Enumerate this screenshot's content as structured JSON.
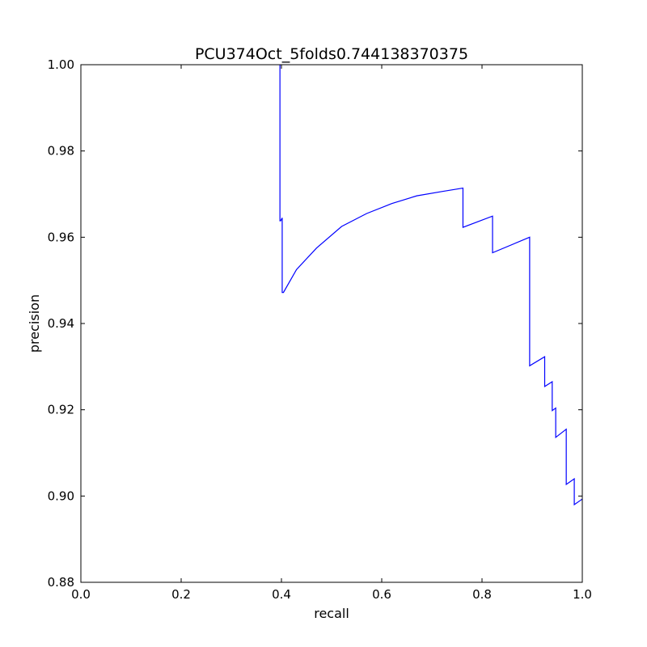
{
  "chart_data": {
    "type": "line",
    "title": "PCU374Oct_5folds0.744138370375",
    "xlabel": "recall",
    "ylabel": "precision",
    "xlim": [
      0.0,
      1.0
    ],
    "ylim": [
      0.88,
      1.0
    ],
    "x_ticks": [
      "0.0",
      "0.2",
      "0.4",
      "0.6",
      "0.8",
      "1.0"
    ],
    "y_ticks": [
      "0.88",
      "0.90",
      "0.92",
      "0.94",
      "0.96",
      "0.98",
      "1.00"
    ],
    "grid": false,
    "legend": "none",
    "line_color": "#0000ff",
    "series": [
      {
        "x": [
          0.397,
          0.397,
          0.3985,
          0.4015,
          0.4015,
          0.404,
          0.404,
          0.43,
          0.47,
          0.52,
          0.57,
          0.62,
          0.67,
          0.72,
          0.762,
          0.762,
          0.821,
          0.821,
          0.895,
          0.895,
          0.925,
          0.925,
          0.94,
          0.94,
          0.947,
          0.947,
          0.968,
          0.968,
          0.984,
          0.984,
          1.0
        ],
        "y": [
          1.0,
          0.9638,
          0.9638,
          0.9645,
          0.9472,
          0.9472,
          0.9472,
          0.9525,
          0.9575,
          0.9625,
          0.9655,
          0.9678,
          0.9696,
          0.9706,
          0.9714,
          0.9623,
          0.9649,
          0.9564,
          0.96,
          0.9302,
          0.9323,
          0.9254,
          0.9265,
          0.9198,
          0.9204,
          0.9136,
          0.9155,
          0.9027,
          0.904,
          0.898,
          0.8993
        ]
      }
    ]
  }
}
